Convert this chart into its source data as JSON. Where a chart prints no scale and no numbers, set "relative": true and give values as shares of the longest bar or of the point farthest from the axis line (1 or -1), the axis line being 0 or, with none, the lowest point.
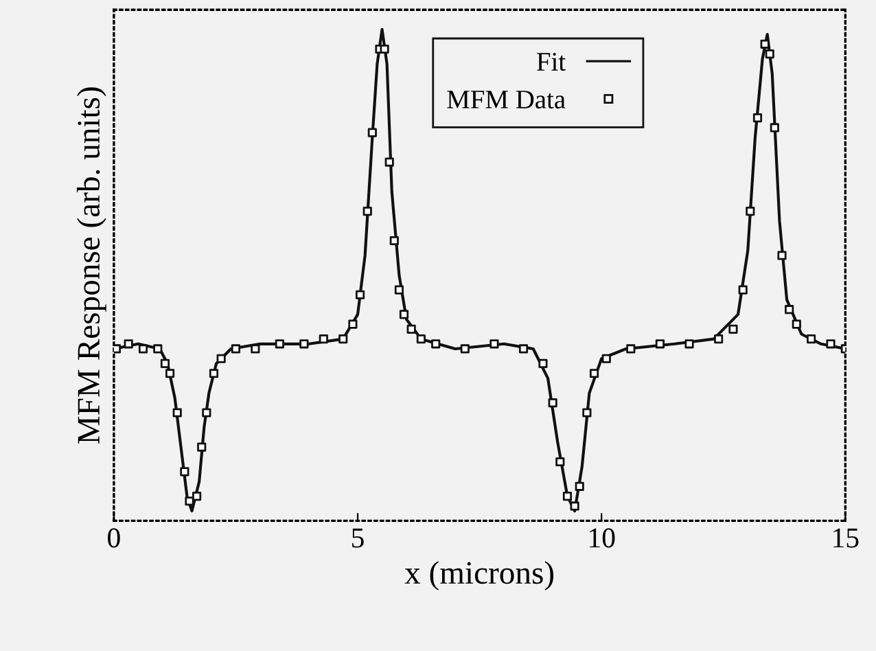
{
  "chart_data": {
    "type": "line",
    "xlabel": "x (microns)",
    "ylabel": "MFM Response (arb. units)",
    "relative": true,
    "xlim": [
      0,
      15
    ],
    "xticks": [
      0,
      5,
      10,
      15
    ],
    "tick_labels": "x",
    "grid": false,
    "legend": "top",
    "series": [
      {
        "name": "Fit",
        "color": "#111111",
        "marker": "none",
        "line_style": "solid",
        "x": [
          0,
          0.5,
          0.94,
          1.1,
          1.25,
          1.4,
          1.5,
          1.6,
          1.75,
          1.85,
          1.95,
          2.1,
          2.4,
          3,
          4,
          4.7,
          5.0,
          5.15,
          5.3,
          5.4,
          5.5,
          5.6,
          5.7,
          5.85,
          6.0,
          6.3,
          7,
          8,
          8.6,
          8.9,
          9.1,
          9.3,
          9.45,
          9.6,
          9.75,
          10,
          10.5,
          11.5,
          12.3,
          12.8,
          13.0,
          13.15,
          13.3,
          13.4,
          13.5,
          13.65,
          13.8,
          14.1,
          14.5,
          15
        ],
        "values": [
          0.35,
          0.36,
          0.35,
          0.32,
          0.25,
          0.13,
          0.05,
          0.02,
          0.08,
          0.19,
          0.26,
          0.32,
          0.35,
          0.36,
          0.36,
          0.37,
          0.42,
          0.54,
          0.78,
          0.93,
          1.0,
          0.93,
          0.67,
          0.5,
          0.41,
          0.37,
          0.35,
          0.36,
          0.35,
          0.29,
          0.16,
          0.05,
          0.02,
          0.11,
          0.26,
          0.33,
          0.35,
          0.36,
          0.37,
          0.42,
          0.55,
          0.78,
          0.94,
          0.99,
          0.91,
          0.61,
          0.45,
          0.38,
          0.36,
          0.35
        ]
      },
      {
        "name": "MFM Data",
        "type": "scatter",
        "color": "#111111",
        "marker": "square",
        "x": [
          0.05,
          0.3,
          0.6,
          0.9,
          1.05,
          1.15,
          1.3,
          1.45,
          1.55,
          1.7,
          1.8,
          1.9,
          2.05,
          2.2,
          2.5,
          2.9,
          3.4,
          3.9,
          4.3,
          4.7,
          4.9,
          5.05,
          5.2,
          5.3,
          5.45,
          5.55,
          5.65,
          5.75,
          5.85,
          5.95,
          6.1,
          6.3,
          6.6,
          7.2,
          7.8,
          8.4,
          8.8,
          9.0,
          9.15,
          9.3,
          9.45,
          9.55,
          9.7,
          9.85,
          10.1,
          10.6,
          11.2,
          11.8,
          12.4,
          12.7,
          12.9,
          13.05,
          13.2,
          13.35,
          13.45,
          13.55,
          13.7,
          13.85,
          14.0,
          14.3,
          14.7,
          15.0
        ],
        "values": [
          0.35,
          0.36,
          0.35,
          0.35,
          0.32,
          0.3,
          0.22,
          0.1,
          0.04,
          0.05,
          0.15,
          0.22,
          0.3,
          0.33,
          0.35,
          0.35,
          0.36,
          0.36,
          0.37,
          0.37,
          0.4,
          0.46,
          0.63,
          0.79,
          0.96,
          0.96,
          0.73,
          0.57,
          0.47,
          0.42,
          0.39,
          0.37,
          0.36,
          0.35,
          0.36,
          0.35,
          0.32,
          0.24,
          0.12,
          0.05,
          0.03,
          0.07,
          0.22,
          0.3,
          0.33,
          0.35,
          0.36,
          0.36,
          0.37,
          0.39,
          0.47,
          0.63,
          0.82,
          0.97,
          0.95,
          0.8,
          0.54,
          0.43,
          0.4,
          0.37,
          0.36,
          0.35
        ]
      }
    ]
  }
}
